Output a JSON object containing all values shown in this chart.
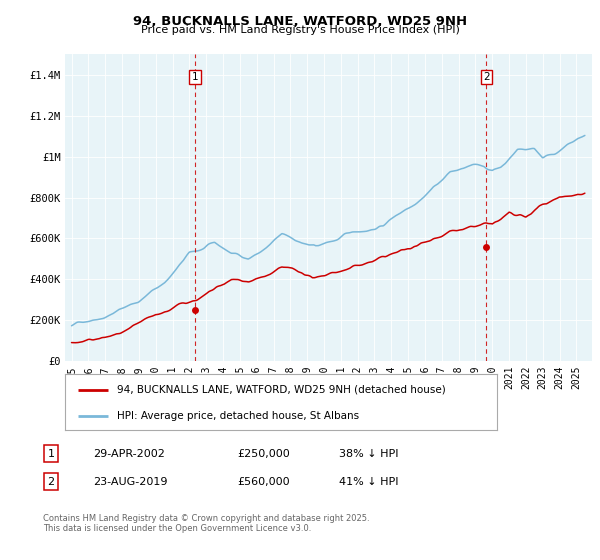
{
  "title_line1": "94, BUCKNALLS LANE, WATFORD, WD25 9NH",
  "title_line2": "Price paid vs. HM Land Registry's House Price Index (HPI)",
  "legend_line1": "94, BUCKNALLS LANE, WATFORD, WD25 9NH (detached house)",
  "legend_line2": "HPI: Average price, detached house, St Albans",
  "annotation1_label": "1",
  "annotation1_date": "29-APR-2002",
  "annotation1_price": "£250,000",
  "annotation1_hpi": "38% ↓ HPI",
  "annotation2_label": "2",
  "annotation2_date": "23-AUG-2019",
  "annotation2_price": "£560,000",
  "annotation2_hpi": "41% ↓ HPI",
  "footnote": "Contains HM Land Registry data © Crown copyright and database right 2025.\nThis data is licensed under the Open Government Licence v3.0.",
  "red_color": "#cc0000",
  "blue_color": "#7ab8d9",
  "dashed_color": "#cc0000",
  "background_color": "#ffffff",
  "plot_bg_color": "#e8f4f8",
  "ylim": [
    0,
    1500000
  ],
  "yticks": [
    0,
    200000,
    400000,
    600000,
    800000,
    1000000,
    1200000,
    1400000
  ],
  "ytick_labels": [
    "£0",
    "£200K",
    "£400K",
    "£600K",
    "£800K",
    "£1M",
    "£1.2M",
    "£1.4M"
  ],
  "sale1_x": 2002.33,
  "sale1_y": 250000,
  "sale2_x": 2019.64,
  "sale2_y": 560000,
  "xmin": 1994.6,
  "xmax": 2025.9
}
